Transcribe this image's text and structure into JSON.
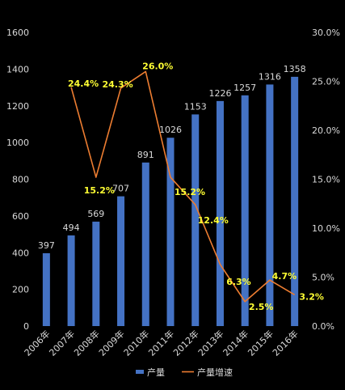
{
  "chart_data": {
    "type": "bar",
    "categories": [
      "2006年",
      "2007年",
      "2008年",
      "2009年",
      "2010年",
      "2011年",
      "2012年",
      "2013年",
      "2014年",
      "2015年",
      "2016年"
    ],
    "series": [
      {
        "name": "产量",
        "type": "bar",
        "axis": "left",
        "color": "#4472c4",
        "values": [
          397,
          494,
          569,
          707,
          891,
          1026,
          1153,
          1226,
          1257,
          1316,
          1358
        ],
        "labels": [
          "397",
          "494",
          "569",
          "707",
          "891",
          "1026",
          "1153",
          "1226",
          "1257",
          "1316",
          "1358"
        ]
      },
      {
        "name": "产量增速",
        "type": "line",
        "axis": "right",
        "color": "#ed7d31",
        "values": [
          null,
          24.4,
          15.2,
          24.3,
          26.0,
          15.2,
          12.4,
          6.3,
          2.5,
          4.7,
          3.2
        ],
        "labels": [
          "",
          "24.4%",
          "15.2%",
          "24.3%",
          "26.0%",
          "15.2%",
          "12.4%",
          "6.3%",
          "2.5%",
          "4.7%",
          "3.2%"
        ]
      }
    ],
    "y_left": {
      "ylim": [
        0,
        1600
      ],
      "ticks": [
        "0",
        "200",
        "400",
        "600",
        "800",
        "1000",
        "1200",
        "1400",
        "1600"
      ],
      "tick_values": [
        0,
        200,
        400,
        600,
        800,
        1000,
        1200,
        1400,
        1600
      ]
    },
    "y_right": {
      "ylim": [
        0,
        30
      ],
      "ticks": [
        "0.0%",
        "5.0%",
        "10.0%",
        "15.0%",
        "20.0%",
        "25.0%",
        "30.0%"
      ],
      "tick_values": [
        0,
        5,
        10,
        15,
        20,
        25,
        30
      ]
    },
    "title": "",
    "xlabel": "",
    "ylabel": "",
    "grid": false,
    "legend": "bottom",
    "colors": {
      "background": "#000000",
      "text": "#d9d9d9",
      "rate_label": "#ffff33"
    }
  }
}
